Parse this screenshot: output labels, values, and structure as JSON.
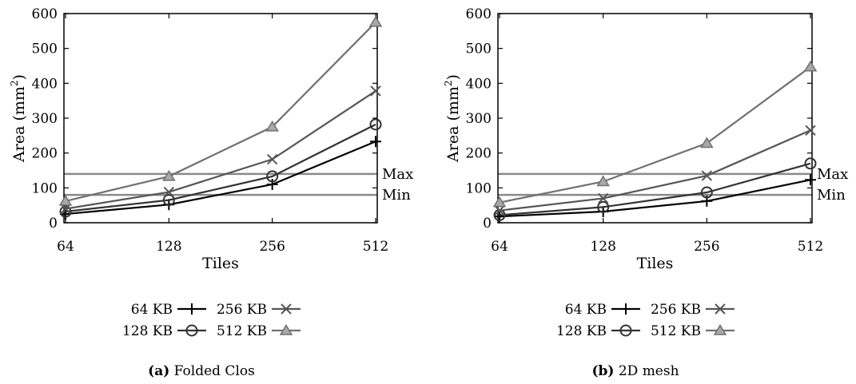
{
  "chart_data": [
    {
      "type": "line",
      "categories": [
        "64",
        "128",
        "256",
        "512"
      ],
      "xlabel": "Tiles",
      "ylabel": "Area (mm",
      "ylabel_sup": "2",
      "ylabel_end": ")",
      "ylim": [
        0,
        600
      ],
      "yticks": [
        "0",
        "100",
        "200",
        "300",
        "400",
        "500",
        "600"
      ],
      "grid": false,
      "caption_tag": "(a)",
      "caption_text": "Folded Clos",
      "reference_lines": [
        {
          "label": "Max",
          "value": 140
        },
        {
          "label": "Min",
          "value": 80
        }
      ],
      "series": [
        {
          "name": "64 KB",
          "marker": "plus",
          "color": "#000000",
          "values": [
            25,
            52,
            110,
            233
          ]
        },
        {
          "name": "128 KB",
          "marker": "circle",
          "color": "#333333",
          "values": [
            32,
            65,
            133,
            282
          ]
        },
        {
          "name": "256 KB",
          "marker": "cross",
          "color": "#555555",
          "values": [
            40,
            88,
            182,
            378
          ]
        },
        {
          "name": "512 KB",
          "marker": "triangle",
          "color": "#707070",
          "values": [
            62,
            133,
            275,
            575
          ]
        }
      ]
    },
    {
      "type": "line",
      "categories": [
        "64",
        "128",
        "256",
        "512"
      ],
      "xlabel": "Tiles",
      "ylabel": "Area (mm",
      "ylabel_sup": "2",
      "ylabel_end": ")",
      "ylim": [
        0,
        600
      ],
      "yticks": [
        "0",
        "100",
        "200",
        "300",
        "400",
        "500",
        "600"
      ],
      "grid": false,
      "caption_tag": "(b)",
      "caption_text": "2D mesh",
      "reference_lines": [
        {
          "label": "Max",
          "value": 140
        },
        {
          "label": "Min",
          "value": 80
        }
      ],
      "series": [
        {
          "name": "64 KB",
          "marker": "plus",
          "color": "#000000",
          "values": [
            18,
            32,
            62,
            123
          ]
        },
        {
          "name": "128 KB",
          "marker": "circle",
          "color": "#333333",
          "values": [
            22,
            45,
            87,
            170
          ]
        },
        {
          "name": "256 KB",
          "marker": "cross",
          "color": "#555555",
          "values": [
            35,
            70,
            135,
            265
          ]
        },
        {
          "name": "512 KB",
          "marker": "triangle",
          "color": "#707070",
          "values": [
            58,
            118,
            228,
            447
          ]
        }
      ]
    }
  ]
}
